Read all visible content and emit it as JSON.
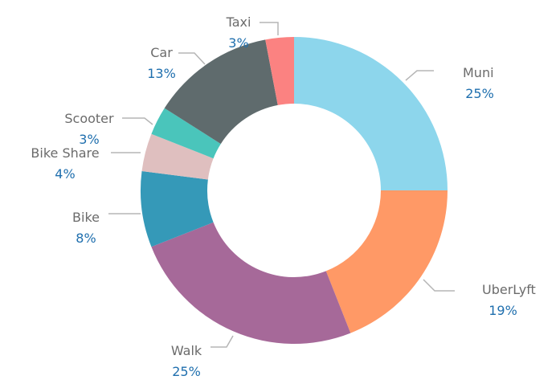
{
  "chart_data": {
    "type": "pie",
    "slices": [
      {
        "name": "Muni",
        "value": 25,
        "label": "25%",
        "color": "#8DD6EC"
      },
      {
        "name": "UberLyft",
        "value": 19,
        "label": "19%",
        "color": "#FF9966"
      },
      {
        "name": "Walk",
        "value": 25,
        "label": "25%",
        "color": "#A66999"
      },
      {
        "name": "Bike",
        "value": 8,
        "label": "8%",
        "color": "#3599B8"
      },
      {
        "name": "Bike Share",
        "value": 4,
        "label": "4%",
        "color": "#DFBFBF"
      },
      {
        "name": "Scooter",
        "value": 3,
        "label": "3%",
        "color": "#4AC5BB"
      },
      {
        "name": "Car",
        "value": 13,
        "label": "13%",
        "color": "#5F6B6D"
      },
      {
        "name": "Taxi",
        "value": 3,
        "label": "3%",
        "color": "#FB8281"
      }
    ]
  }
}
